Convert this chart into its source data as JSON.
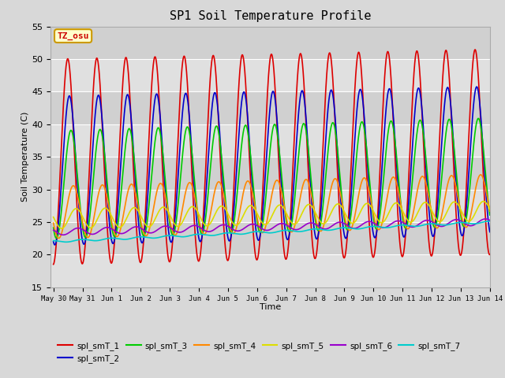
{
  "title": "SP1 Soil Temperature Profile",
  "xlabel": "Time",
  "ylabel": "Soil Temperature (C)",
  "ylim": [
    15,
    55
  ],
  "annotation_text": "TZ_osu",
  "annotation_color": "#cc0000",
  "annotation_bg": "#ffffcc",
  "annotation_border": "#cc9900",
  "series_colors": {
    "spl_smT_1": "#dd0000",
    "spl_smT_2": "#0000cc",
    "spl_smT_3": "#00cc00",
    "spl_smT_4": "#ff8800",
    "spl_smT_5": "#dddd00",
    "spl_smT_6": "#9900cc",
    "spl_smT_7": "#00cccc"
  },
  "bg_color": "#d8d8d8",
  "plot_bg": "#e8e8e8",
  "grid_color": "#ffffff",
  "tick_labels": [
    "May 30",
    "May 31",
    "Jun 1",
    "Jun 2",
    "Jun 3",
    "Jun 4",
    "Jun 5",
    "Jun 6",
    "Jun 7",
    "Jun 8",
    "Jun 9",
    "Jun 10",
    "Jun 11",
    "Jun 12",
    "Jun 13",
    "Jun 14"
  ],
  "yticks": [
    15,
    20,
    25,
    30,
    35,
    40,
    45,
    50,
    55
  ]
}
